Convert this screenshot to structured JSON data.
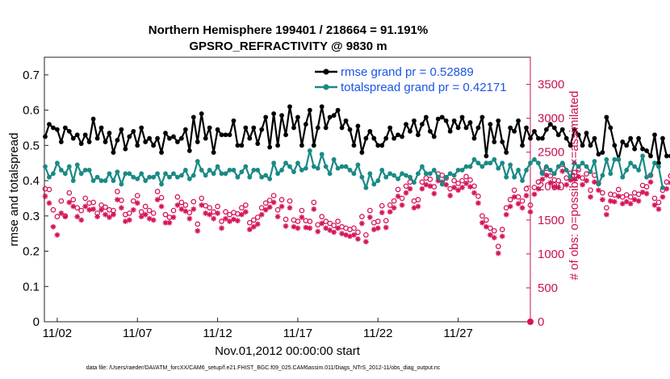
{
  "chart_data": {
    "type": "line",
    "title": "Northern Hemisphere 199401 / 218664 = 91.191%",
    "subtitle": "GPSRO_REFRACTIVITY @ 9830 m",
    "xlabel": "Nov.01,2012 00:00:00 start",
    "ylabel": "rmse and totalspread",
    "y2label": "# of obs: o=possible; ×=assimilated",
    "footer": "data file: /Users/raeder/DAI/ATM_forcXX/CAM6_setup/f.e21.FHIST_BGC.f09_025.CAM6assim.011/Diags_NTrS_2012-11/obs_diag_output.nc",
    "xlim": [
      0.7,
      31.0
    ],
    "ylim": [
      0,
      0.75
    ],
    "y2lim": [
      0,
      3900
    ],
    "x_ticks": [
      1.5,
      6.5,
      11.5,
      16.5,
      21.5,
      26.5
    ],
    "x_tick_labels": [
      "11/02",
      "11/07",
      "11/12",
      "11/17",
      "11/22",
      "11/27"
    ],
    "y_ticks": [
      0,
      0.1,
      0.2,
      0.3,
      0.4,
      0.5,
      0.6,
      0.7
    ],
    "y_tick_labels": [
      "0",
      "0.1",
      "0.2",
      "0.3",
      "0.4",
      "0.5",
      "0.6",
      "0.7"
    ],
    "y2_ticks": [
      0,
      500,
      1000,
      1500,
      2000,
      2500,
      3000,
      3500
    ],
    "y2_tick_labels": [
      "0",
      "500",
      "1000",
      "1500",
      "2000",
      "2500",
      "3000",
      "3500"
    ],
    "x_start": 0.75,
    "x_step": 0.25,
    "series": [
      {
        "name": "rmse grand pr = 0.52889",
        "color": "#000000",
        "marker": "dot",
        "values": [
          0.525,
          0.56,
          0.55,
          0.545,
          0.51,
          0.55,
          0.54,
          0.52,
          0.53,
          0.505,
          0.53,
          0.51,
          0.575,
          0.52,
          0.55,
          0.51,
          0.535,
          0.48,
          0.515,
          0.545,
          0.49,
          0.525,
          0.54,
          0.5,
          0.55,
          0.51,
          0.52,
          0.5,
          0.52,
          0.48,
          0.535,
          0.52,
          0.525,
          0.51,
          0.52,
          0.545,
          0.485,
          0.58,
          0.51,
          0.59,
          0.52,
          0.55,
          0.48,
          0.545,
          0.53,
          0.53,
          0.53,
          0.57,
          0.5,
          0.5,
          0.55,
          0.52,
          0.55,
          0.505,
          0.545,
          0.58,
          0.495,
          0.59,
          0.5,
          0.585,
          0.53,
          0.61,
          0.55,
          0.58,
          0.5,
          0.56,
          0.6,
          0.5,
          0.55,
          0.61,
          0.55,
          0.58,
          0.585,
          0.6,
          0.55,
          0.57,
          0.545,
          0.5,
          0.555,
          0.48,
          0.52,
          0.54,
          0.52,
          0.5,
          0.5,
          0.52,
          0.55,
          0.52,
          0.53,
          0.525,
          0.56,
          0.54,
          0.57,
          0.53,
          0.56,
          0.58,
          0.54,
          0.525,
          0.575,
          0.58,
          0.57,
          0.54,
          0.57,
          0.55,
          0.58,
          0.55,
          0.565,
          0.52,
          0.55,
          0.58,
          0.47,
          0.56,
          0.51,
          0.57,
          0.51,
          0.48,
          0.55,
          0.54,
          0.57,
          0.5,
          0.55,
          0.52,
          0.54,
          0.52,
          0.52,
          0.545,
          0.56,
          0.55,
          0.53,
          0.545,
          0.52,
          0.5,
          0.545,
          0.53,
          0.5,
          0.535,
          0.5,
          0.52,
          0.475,
          0.48,
          0.58,
          0.55,
          0.5,
          0.46,
          0.51,
          0.5,
          0.52,
          0.49,
          0.52,
          0.49,
          0.485,
          0.47,
          0.53,
          0.45,
          0.52,
          0.47,
          0.47
        ]
      },
      {
        "name": "totalspread grand pr = 0.42171",
        "color": "#1a8a85",
        "marker": "dot",
        "values": [
          0.44,
          0.41,
          0.42,
          0.45,
          0.43,
          0.42,
          0.44,
          0.4,
          0.445,
          0.42,
          0.43,
          0.43,
          0.4,
          0.41,
          0.4,
          0.4,
          0.42,
          0.4,
          0.425,
          0.39,
          0.42,
          0.42,
          0.41,
          0.405,
          0.42,
          0.4,
          0.41,
          0.41,
          0.42,
          0.39,
          0.42,
          0.41,
          0.42,
          0.41,
          0.415,
          0.43,
          0.405,
          0.415,
          0.455,
          0.43,
          0.415,
          0.43,
          0.42,
          0.44,
          0.42,
          0.42,
          0.43,
          0.43,
          0.41,
          0.425,
          0.44,
          0.41,
          0.43,
          0.43,
          0.41,
          0.415,
          0.405,
          0.45,
          0.42,
          0.43,
          0.45,
          0.44,
          0.425,
          0.45,
          0.43,
          0.435,
          0.485,
          0.44,
          0.435,
          0.475,
          0.44,
          0.42,
          0.46,
          0.435,
          0.44,
          0.44,
          0.43,
          0.42,
          0.445,
          0.41,
          0.38,
          0.42,
          0.39,
          0.4,
          0.43,
          0.41,
          0.42,
          0.415,
          0.405,
          0.42,
          0.415,
          0.41,
          0.395,
          0.42,
          0.44,
          0.42,
          0.42,
          0.43,
          0.41,
          0.39,
          0.41,
          0.42,
          0.415,
          0.43,
          0.43,
          0.44,
          0.44,
          0.46,
          0.45,
          0.44,
          0.45,
          0.45,
          0.46,
          0.435,
          0.45,
          0.41,
          0.445,
          0.41,
          0.43,
          0.4,
          0.43,
          0.45,
          0.46,
          0.45,
          0.42,
          0.44,
          0.43,
          0.42,
          0.44,
          0.45,
          0.43,
          0.41,
          0.45,
          0.44,
          0.45,
          0.44,
          0.425,
          0.455,
          0.39,
          0.415,
          0.46,
          0.42,
          0.46,
          0.46,
          0.41,
          0.43,
          0.45,
          0.44,
          0.43,
          0.47,
          0.41,
          0.415,
          0.45,
          0.44,
          0.38
        ]
      }
    ],
    "obs_possible": {
      "name": "possible",
      "marker": "o",
      "color": "#d4145a",
      "values": [
        1960,
        1950,
        1650,
        1550,
        1780,
        1560,
        1900,
        1800,
        1680,
        1640,
        1820,
        1750,
        1760,
        1600,
        1720,
        1690,
        1650,
        1640,
        1920,
        1790,
        1580,
        1600,
        1780,
        1860,
        1620,
        1700,
        1640,
        1600,
        1920,
        1830,
        1580,
        1540,
        1640,
        1840,
        1760,
        1720,
        1610,
        1770,
        1440,
        1820,
        1710,
        1680,
        1620,
        1700,
        1480,
        1620,
        1580,
        1610,
        1590,
        1680,
        1720,
        1460,
        1500,
        1540,
        1680,
        1750,
        1790,
        1860,
        1650,
        1800,
        1510,
        1780,
        1500,
        1480,
        1640,
        1490,
        1480,
        1760,
        1430,
        1550,
        1480,
        1450,
        1420,
        1480,
        1400,
        1380,
        1360,
        1380,
        1320,
        1550,
        1280,
        1640,
        1460,
        1480,
        1710,
        1490,
        1720,
        1780,
        1950,
        1820,
        2000,
        2060,
        1780,
        1800,
        2060,
        2120,
        2100,
        1990,
        2180,
        2160,
        2120,
        1960,
        2080,
        2040,
        2080,
        2140,
        2090,
        2000,
        1850,
        1560,
        1500,
        1380,
        1340,
        1110,
        1360,
        1680,
        1800,
        1940,
        1840,
        1780,
        1960,
        1720,
        1980,
        2060,
        2200,
        2260,
        2150,
        2090,
        2080,
        2320,
        2120,
        2190,
        2200,
        2240,
        2120,
        2180,
        1940,
        2160,
        2040,
        1900,
        1680,
        1880,
        1870,
        1950,
        1840,
        1870,
        1840,
        1900,
        1880,
        2010,
        1990,
        2160,
        1820,
        1760,
        1940,
        2060,
        2150,
        2160,
        2340
      ]
    },
    "obs_assimilated": {
      "name": "assimilated",
      "marker": "*",
      "color": "#d4145a",
      "values": [
        1850,
        1750,
        1400,
        1280,
        1600,
        1550,
        1760,
        1700,
        1550,
        1500,
        1700,
        1650,
        1660,
        1550,
        1650,
        1580,
        1540,
        1580,
        1800,
        1680,
        1480,
        1500,
        1650,
        1750,
        1550,
        1580,
        1520,
        1500,
        1800,
        1700,
        1460,
        1460,
        1540,
        1720,
        1660,
        1630,
        1520,
        1660,
        1340,
        1720,
        1600,
        1580,
        1520,
        1600,
        1380,
        1520,
        1480,
        1510,
        1490,
        1580,
        1620,
        1360,
        1400,
        1440,
        1580,
        1650,
        1690,
        1760,
        1550,
        1700,
        1410,
        1680,
        1400,
        1380,
        1540,
        1390,
        1380,
        1660,
        1330,
        1450,
        1380,
        1350,
        1320,
        1380,
        1300,
        1280,
        1260,
        1280,
        1220,
        1450,
        1180,
        1540,
        1360,
        1380,
        1610,
        1390,
        1620,
        1680,
        1850,
        1720,
        1900,
        1960,
        1680,
        1700,
        1960,
        2020,
        2000,
        1890,
        2080,
        2060,
        2020,
        1860,
        1980,
        1940,
        1980,
        2040,
        1990,
        1900,
        1750,
        1460,
        1400,
        1280,
        1240,
        1010,
        1260,
        1580,
        1700,
        1840,
        1740,
        1680,
        1860,
        1620,
        1880,
        1960,
        2100,
        2160,
        2050,
        1990,
        1980,
        2220,
        2020,
        2090,
        2100,
        2140,
        2020,
        2080,
        1840,
        2060,
        1940,
        1800,
        1580,
        1780,
        1770,
        1850,
        1740,
        1770,
        1740,
        1800,
        1780,
        1910,
        1890,
        2060,
        1720,
        1660,
        1840,
        1960,
        2050,
        2060,
        2240
      ]
    }
  }
}
